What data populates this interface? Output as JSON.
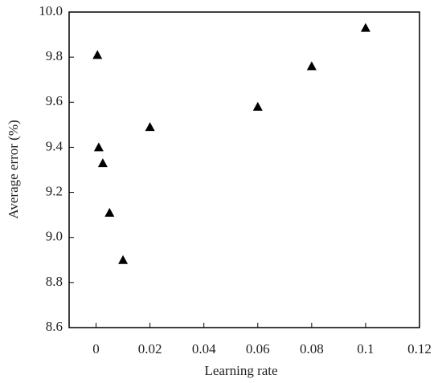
{
  "chart_data": {
    "type": "scatter",
    "x_label": "Learning rate",
    "y_label": "Average error (%)",
    "x": [
      0.0005,
      0.001,
      0.0025,
      0.005,
      0.01,
      0.02,
      0.06,
      0.08,
      0.1
    ],
    "values": [
      9.81,
      9.4,
      9.33,
      9.11,
      8.9,
      9.49,
      9.58,
      9.76,
      9.93
    ],
    "color": "#000000",
    "xlim": [
      -0.01,
      0.12
    ],
    "xticks": [
      0,
      0.02,
      0.04,
      0.06,
      0.08,
      0.1,
      0.12
    ],
    "ylim": [
      8.6,
      10.0
    ],
    "yticks": [
      8.6,
      8.8,
      {
        "value": 9.0,
        "label": "9.0"
      },
      9.2,
      9.4,
      9.6,
      9.8,
      {
        "value": 10.0,
        "label": "10.0"
      }
    ]
  }
}
